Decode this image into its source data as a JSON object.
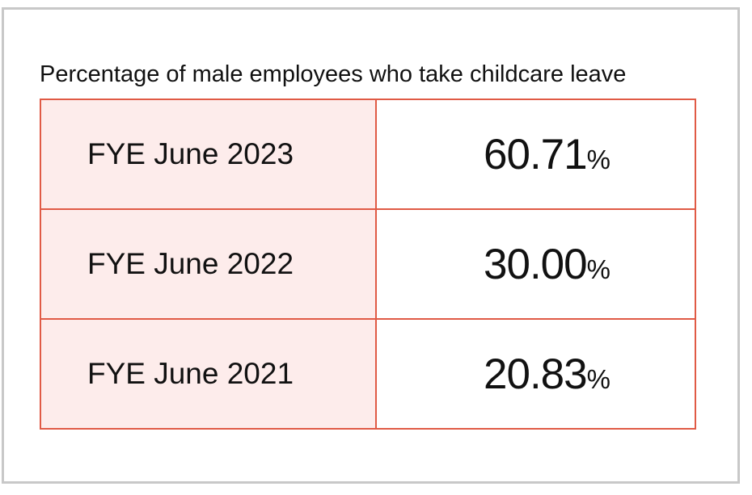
{
  "chart_data": {
    "type": "table",
    "title": "Percentage of male employees who take childcare leave",
    "rows": [
      {
        "label": "FYE June 2023",
        "value": "60.71",
        "unit": "%"
      },
      {
        "label": "FYE June 2022",
        "value": "30.00",
        "unit": "%"
      },
      {
        "label": "FYE June 2021",
        "value": "20.83",
        "unit": "%"
      }
    ]
  },
  "colors": {
    "border": "#e05a45",
    "label_background": "#fdeceb",
    "frame": "#c8c8c8"
  }
}
